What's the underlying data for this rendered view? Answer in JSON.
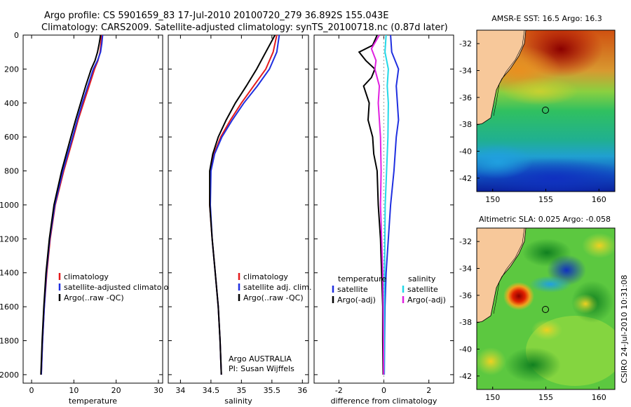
{
  "header": {
    "line1": "Argo profile: CS 5901659_83 17-Jul-2010 20100720_279 36.892S 155.043E",
    "line2": "Climatology: CARS2009. Satellite-adjusted climatology: synTS_20100718.nc (0.87d later)"
  },
  "side_label": "CSIRO 24-Jul-2010 10:31:08",
  "colors": {
    "climatology": "#e41a1c",
    "satellite": "#1f2fe0",
    "argo": "#000000",
    "sat_sal": "#22d8e8",
    "argo_sal": "#e020e0",
    "land": "#f7c89a"
  },
  "depth_axis": {
    "ticks": [
      "0",
      "200",
      "400",
      "600",
      "800",
      "1000",
      "1200",
      "1400",
      "1600",
      "1800",
      "2000"
    ]
  },
  "chart_data": [
    {
      "type": "line",
      "xlabel": "temperature",
      "xlim": [
        -2,
        31
      ],
      "ylim": [
        2050,
        0
      ],
      "xticks": [
        "0",
        "10",
        "20",
        "30"
      ],
      "xtick_vals": [
        0,
        10,
        20,
        30
      ],
      "legend": [
        "climatology",
        "satellite-adjusted climatology",
        "Argo(..raw -QC)"
      ],
      "series": [
        {
          "name": "climatology",
          "key": "climatology",
          "depth": [
            0,
            50,
            100,
            150,
            200,
            300,
            400,
            500,
            600,
            800,
            1000,
            1200,
            1400,
            1600,
            1800,
            2000
          ],
          "values": [
            16.5,
            16.4,
            16.2,
            15.7,
            14.9,
            13.6,
            12.3,
            11.0,
            9.9,
            7.6,
            5.6,
            4.4,
            3.6,
            3.0,
            2.6,
            2.3
          ]
        },
        {
          "name": "satellite-adjusted climatology",
          "key": "satellite",
          "depth": [
            0,
            50,
            100,
            150,
            200,
            300,
            400,
            500,
            600,
            800,
            1000,
            1200,
            1400,
            1600,
            1800,
            2000
          ],
          "values": [
            16.8,
            16.6,
            16.3,
            15.6,
            14.6,
            13.3,
            12.0,
            10.8,
            9.7,
            7.4,
            5.5,
            4.3,
            3.5,
            3.0,
            2.6,
            2.3
          ]
        },
        {
          "name": "Argo(..raw -QC)",
          "key": "argo",
          "depth": [
            0,
            50,
            100,
            150,
            200,
            300,
            400,
            500,
            600,
            800,
            1000,
            1200,
            1400,
            1600,
            1800,
            2000
          ],
          "values": [
            16.3,
            16.0,
            15.6,
            15.0,
            14.1,
            12.8,
            11.6,
            10.4,
            9.3,
            7.1,
            5.3,
            4.2,
            3.4,
            2.9,
            2.5,
            2.2
          ]
        }
      ]
    },
    {
      "type": "line",
      "xlabel": "salinity",
      "xlim": [
        33.8,
        36.1
      ],
      "ylim": [
        2050,
        0
      ],
      "xticks": [
        "34",
        "34.5",
        "35",
        "35.5",
        "36"
      ],
      "xtick_vals": [
        34,
        34.5,
        35,
        35.5,
        36
      ],
      "legend": [
        "climatology",
        "satellite adj. clim.",
        "Argo(..raw -QC)"
      ],
      "annotation": [
        "Argo AUSTRALIA",
        "PI: Susan Wijffels"
      ],
      "series": [
        {
          "name": "climatology",
          "key": "climatology",
          "depth": [
            0,
            100,
            200,
            300,
            400,
            500,
            600,
            700,
            800,
            1000,
            1200,
            1400,
            1600,
            1800,
            2000
          ],
          "values": [
            35.58,
            35.52,
            35.4,
            35.2,
            35.0,
            34.82,
            34.66,
            34.55,
            34.49,
            34.48,
            34.52,
            34.57,
            34.62,
            34.65,
            34.67
          ]
        },
        {
          "name": "satellite adj. clim.",
          "key": "satellite",
          "depth": [
            0,
            100,
            200,
            300,
            400,
            500,
            600,
            700,
            800,
            1000,
            1200,
            1400,
            1600,
            1800,
            2000
          ],
          "values": [
            35.62,
            35.58,
            35.46,
            35.26,
            35.04,
            34.85,
            34.68,
            34.56,
            34.5,
            34.49,
            34.52,
            34.57,
            34.62,
            34.65,
            34.67
          ]
        },
        {
          "name": "Argo(..raw -QC)",
          "key": "argo",
          "depth": [
            0,
            100,
            200,
            300,
            400,
            500,
            600,
            700,
            800,
            1000,
            1200,
            1400,
            1600,
            1800,
            2000
          ],
          "values": [
            35.55,
            35.4,
            35.25,
            35.08,
            34.9,
            34.75,
            34.62,
            34.53,
            34.48,
            34.48,
            34.52,
            34.57,
            34.62,
            34.65,
            34.67
          ]
        }
      ]
    },
    {
      "type": "line",
      "xlabel": "difference from climatology",
      "xlim": [
        -3.1,
        3.1
      ],
      "ylim": [
        2050,
        0
      ],
      "xticks": [
        "-2",
        "0",
        "2"
      ],
      "xtick_vals": [
        -2,
        0,
        2
      ],
      "legend_temp": {
        "title": "temperature",
        "items": [
          "satellite",
          "Argo(-adj)"
        ]
      },
      "legend_sal": {
        "title": "salinity",
        "items": [
          "satellite",
          "Argo(-adj)"
        ]
      },
      "series": [
        {
          "name": "temperature satellite",
          "key": "satellite",
          "depth": [
            0,
            100,
            200,
            300,
            400,
            500,
            600,
            800,
            1000,
            1200,
            1400,
            1600,
            1800,
            2000
          ],
          "values": [
            0.3,
            0.35,
            0.65,
            0.55,
            0.6,
            0.65,
            0.55,
            0.45,
            0.3,
            0.2,
            0.1,
            0.05,
            0.03,
            0.02
          ]
        },
        {
          "name": "temperature Argo(-adj)",
          "key": "argo",
          "depth": [
            0,
            60,
            100,
            150,
            200,
            250,
            300,
            400,
            500,
            600,
            700,
            800,
            1000,
            1200,
            1400,
            1600,
            1800,
            2000
          ],
          "values": [
            -0.3,
            -0.5,
            -1.1,
            -0.8,
            -0.4,
            -0.55,
            -0.9,
            -0.65,
            -0.7,
            -0.5,
            -0.45,
            -0.3,
            -0.25,
            -0.15,
            -0.1,
            -0.05,
            -0.05,
            -0.03
          ]
        },
        {
          "name": "salinity satellite",
          "key": "sat_sal",
          "depth": [
            0,
            100,
            200,
            300,
            400,
            600,
            800,
            1000,
            1400,
            1800,
            2000
          ],
          "values": [
            0.1,
            0.05,
            0.2,
            0.15,
            0.2,
            0.18,
            0.12,
            0.06,
            0.03,
            0.02,
            0.01
          ]
        },
        {
          "name": "salinity Argo(-adj)",
          "key": "argo_sal",
          "depth": [
            0,
            80,
            150,
            200,
            300,
            400,
            600,
            800,
            1000,
            1200,
            1400,
            1600,
            1800,
            2000
          ],
          "values": [
            -0.2,
            -0.55,
            -0.35,
            -0.4,
            -0.2,
            -0.25,
            -0.15,
            -0.12,
            -0.15,
            -0.1,
            -0.05,
            -0.03,
            -0.02,
            -0.01
          ]
        }
      ]
    },
    {
      "type": "heatmap",
      "title": "AMSR-E SST: 16.5 Argo: 16.3",
      "xlim": [
        148.5,
        161.5
      ],
      "ylim": [
        -43,
        -31
      ],
      "xticks": [
        "150",
        "155",
        "160"
      ],
      "xtick_vals": [
        150,
        155,
        160
      ],
      "yticks": [
        "-32",
        "-34",
        "-36",
        "-38",
        "-40",
        "-42"
      ],
      "ytick_vals": [
        -32,
        -34,
        -36,
        -38,
        -40,
        -42
      ],
      "float_marker": {
        "lon": 155.043,
        "lat": -36.892
      }
    },
    {
      "type": "heatmap",
      "title": "Altimetric SLA: 0.025 Argo: -0.058",
      "xlim": [
        148.5,
        161.5
      ],
      "ylim": [
        -43,
        -31
      ],
      "xticks": [
        "150",
        "155",
        "160"
      ],
      "xtick_vals": [
        150,
        155,
        160
      ],
      "yticks": [
        "-32",
        "-34",
        "-36",
        "-38",
        "-40",
        "-42"
      ],
      "ytick_vals": [
        -32,
        -34,
        -36,
        -38,
        -40,
        -42
      ],
      "float_marker": {
        "lon": 155.043,
        "lat": -36.892
      }
    }
  ]
}
